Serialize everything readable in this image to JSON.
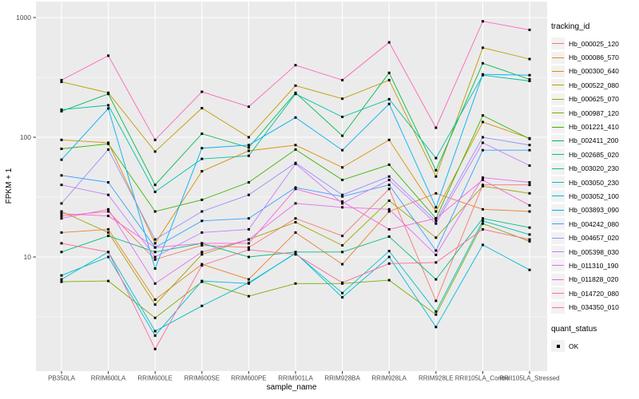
{
  "chart_data": {
    "type": "line",
    "title": "",
    "xlabel": "sample_name",
    "ylabel": "FPKM + 1",
    "y_scale": "log10",
    "y_ticks": [
      "10",
      "100",
      "1000"
    ],
    "y_tick_values": [
      10,
      100,
      1000
    ],
    "y_minor_values": [
      3.162,
      31.62,
      316.2
    ],
    "ylim": [
      1.1,
      1300
    ],
    "grid": "on",
    "legend_position": "right",
    "panel_bg": "#EBEBEB",
    "grid_color": "#FFFFFF",
    "tick_color": "#333333",
    "axis_text_color": "#4D4D4D",
    "point_color": "#000000",
    "categories": [
      "PB350LA",
      "RRIM600LA",
      "RRIM600LE",
      "RRIM600SE",
      "RRIM600PE",
      "RRIM901LA",
      "RRIM928BA",
      "RRIM928LA",
      "RRIM928LE",
      "RRII105LA_Control",
      "RRII105LA_Stressed"
    ],
    "series": [
      {
        "name": "Hb_000025_120",
        "color": "#F8766D",
        "values": [
          22,
          24,
          9.5,
          12.5,
          12,
          21,
          15,
          37,
          4.3,
          40,
          40
        ]
      },
      {
        "name": "Hb_000086_570",
        "color": "#EA8331",
        "values": [
          16,
          17,
          4.4,
          8.7,
          6.5,
          16,
          8.7,
          24,
          34,
          25,
          24
        ]
      },
      {
        "name": "Hb_000300_640",
        "color": "#D89000",
        "values": [
          95,
          90,
          13,
          52,
          77,
          86,
          56,
          95,
          24,
          134,
          98
        ]
      },
      {
        "name": "Hb_000522_080",
        "color": "#C09B00",
        "values": [
          290,
          235,
          76,
          175,
          100,
          270,
          210,
          300,
          47,
          560,
          450
        ]
      },
      {
        "name": "Hb_000625_070",
        "color": "#A3A500",
        "values": [
          24,
          16,
          4.0,
          10.5,
          14,
          19.5,
          12.5,
          29.5,
          14.5,
          39,
          34
        ]
      },
      {
        "name": "Hb_000987_120",
        "color": "#7CAE00",
        "values": [
          6.2,
          6.3,
          3.1,
          6.2,
          4.7,
          6.0,
          6.0,
          6.4,
          3.3,
          19,
          13.5
        ]
      },
      {
        "name": "Hb_001221_410",
        "color": "#39B600",
        "values": [
          80,
          88,
          24,
          30,
          42,
          79,
          44,
          59,
          21,
          152,
          97
        ]
      },
      {
        "name": "Hb_002411_200",
        "color": "#00BB4E",
        "values": [
          165,
          230,
          40,
          107,
          82,
          235,
          103,
          345,
          53,
          415,
          305
        ]
      },
      {
        "name": "Hb_002685_020",
        "color": "#00BF7D",
        "values": [
          11,
          15,
          11,
          13,
          10,
          11,
          11,
          14.8,
          6.5,
          21,
          17.6
        ]
      },
      {
        "name": "Hb_003020_230",
        "color": "#00C1A3",
        "values": [
          170,
          185,
          35,
          66,
          70,
          230,
          148,
          208,
          67,
          330,
          295
        ]
      },
      {
        "name": "Hb_003050_230",
        "color": "#00BFC4",
        "values": [
          6.5,
          11,
          2.4,
          3.9,
          6.1,
          10.7,
          5.0,
          11.2,
          3.5,
          20,
          15.4
        ]
      },
      {
        "name": "Hb_003052_100",
        "color": "#00BAE0",
        "values": [
          7.0,
          10,
          2.2,
          6.3,
          6.0,
          10.8,
          4.6,
          10,
          2.6,
          12.6,
          7.8
        ]
      },
      {
        "name": "Hb_003893_090",
        "color": "#00B0F6",
        "values": [
          65,
          174,
          8.0,
          81,
          86,
          146,
          78,
          190,
          26,
          335,
          330
        ]
      },
      {
        "name": "Hb_004242_080",
        "color": "#35A2FF",
        "values": [
          48,
          42,
          12,
          20,
          21,
          38,
          32,
          40,
          11.3,
          78,
          78
        ]
      },
      {
        "name": "Hb_004657_020",
        "color": "#9590FF",
        "values": [
          28,
          79,
          14,
          24,
          33,
          61,
          33,
          47,
          20,
          100,
          86
        ]
      },
      {
        "name": "Hb_005398_030",
        "color": "#C77CFF",
        "values": [
          40,
          33,
          10,
          16,
          17,
          60,
          28,
          44,
          19,
          90,
          58
        ]
      },
      {
        "name": "Hb_011310_190",
        "color": "#E76BF3",
        "values": [
          21,
          25,
          6.0,
          11,
          14,
          28,
          26,
          25,
          10.4,
          46,
          42
        ]
      },
      {
        "name": "Hb_011828_020",
        "color": "#FA62DB",
        "values": [
          23,
          22,
          12,
          13,
          13,
          37,
          29,
          17,
          21,
          44,
          27
        ]
      },
      {
        "name": "Hb_014720_080",
        "color": "#FF62BC",
        "values": [
          300,
          480,
          95,
          240,
          180,
          400,
          300,
          620,
          120,
          930,
          790
        ]
      },
      {
        "name": "Hb_034350_010",
        "color": "#FF6A98",
        "values": [
          13,
          11,
          1.7,
          8.5,
          11.5,
          10.5,
          6.1,
          8.8,
          9.0,
          17,
          14
        ]
      }
    ],
    "legend": {
      "tracking_title": "tracking_id",
      "quant_title": "quant_status",
      "quant_items": [
        {
          "label": "OK",
          "color": "#000000",
          "shape": "square"
        }
      ]
    }
  }
}
